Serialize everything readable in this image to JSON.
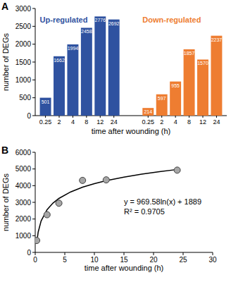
{
  "chart_data": [
    {
      "type": "bar",
      "title": "A",
      "categories": [
        "0.25",
        "2",
        "4",
        "8",
        "12",
        "24"
      ],
      "series": [
        {
          "name": "Up-regulated",
          "color": "#2f52a0",
          "values": [
            501,
            1662,
            1994,
            2458,
            2776,
            2692
          ]
        },
        {
          "name": "Down-regulated",
          "color": "#ee7d31",
          "values": [
            214,
            597,
            955,
            1857,
            1570,
            2237
          ]
        }
      ],
      "xlabel": "time after wounding (h)",
      "ylabel": "number of DEGs",
      "ylim": [
        0,
        3000
      ],
      "yticks": [
        0,
        500,
        1000,
        1500,
        2000,
        2500,
        3000
      ],
      "data_labels": true
    },
    {
      "type": "scatter",
      "title": "B",
      "x": [
        0.25,
        2,
        4,
        8,
        12,
        24
      ],
      "series": [
        {
          "color": "#a6a6a6",
          "marker": "circle",
          "values": [
            715,
            2259,
            2949,
            4315,
            4346,
            4929
          ]
        },
        {
          "type": "line",
          "color": "#000000",
          "x": [
            0.25,
            0.5,
            1,
            2,
            3,
            4,
            6,
            8,
            10,
            12,
            15,
            18,
            21,
            24
          ],
          "values": [
            545,
            1217,
            1889,
            2561,
            2954,
            3233,
            3626,
            3905,
            4122,
            4298,
            4515,
            4691,
            4841,
            4970
          ]
        }
      ],
      "annotations": [
        "y = 969.58ln(x) + 1889",
        "R² = 0.9705"
      ],
      "xlabel": "time after wounding (h)",
      "ylabel": "number of DEGs",
      "xlim": [
        0,
        30
      ],
      "xticks": [
        0,
        5,
        10,
        15,
        20,
        25,
        30
      ],
      "ylim": [
        0,
        6000
      ],
      "yticks": [
        0,
        1000,
        2000,
        3000,
        4000,
        5000,
        6000
      ]
    }
  ]
}
